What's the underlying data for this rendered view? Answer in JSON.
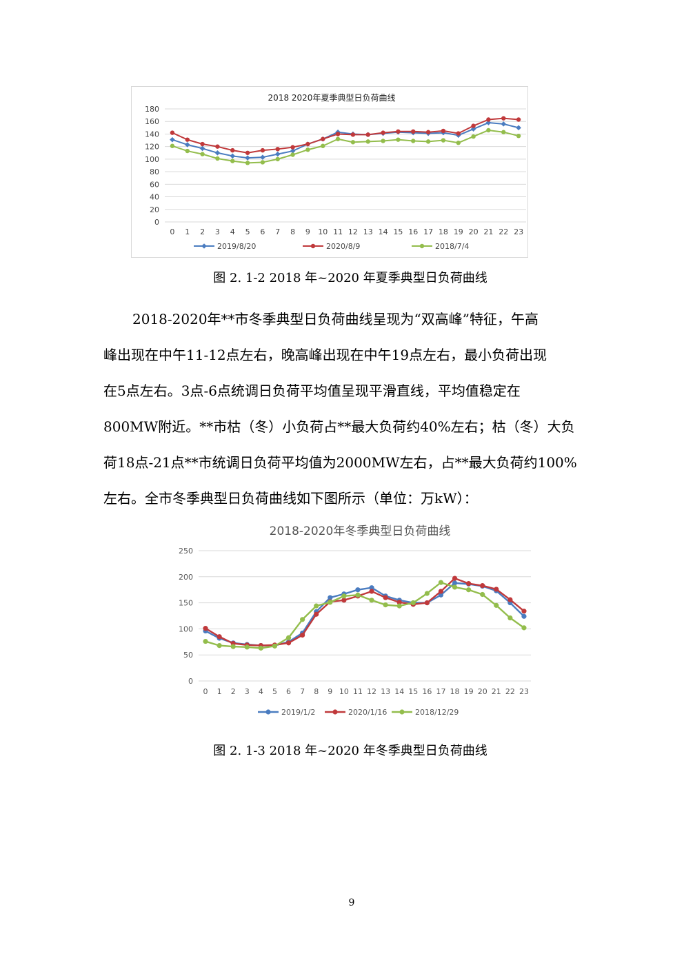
{
  "charts": [
    {
      "title": "2018  2020年夏季典型日负荷曲线",
      "caption": "图 2. 1-2   2018 年~2020 年夏季典型日负荷曲线",
      "type": "line",
      "categories": [
        "0",
        "1",
        "2",
        "3",
        "4",
        "5",
        "6",
        "7",
        "8",
        "9",
        "10",
        "11",
        "12",
        "13",
        "14",
        "15",
        "16",
        "17",
        "18",
        "19",
        "20",
        "21",
        "22",
        "23"
      ],
      "yticks": [
        0,
        20,
        40,
        60,
        80,
        100,
        120,
        140,
        160,
        180
      ],
      "ylim": [
        0,
        180
      ],
      "grid": true,
      "legend_position": "bottom",
      "series": [
        {
          "name": "2019/8/20",
          "color": "#4a7cc0",
          "marker": "diamond",
          "values": [
            131,
            123,
            117,
            110,
            105,
            102,
            103,
            108,
            113,
            124,
            132,
            143,
            140,
            139,
            141,
            143,
            142,
            141,
            142,
            138,
            148,
            158,
            156,
            150
          ]
        },
        {
          "name": "2020/8/9",
          "color": "#c0393b",
          "marker": "circle",
          "values": [
            142,
            131,
            124,
            120,
            114,
            110,
            114,
            116,
            119,
            124,
            132,
            140,
            139,
            139,
            142,
            144,
            144,
            143,
            145,
            141,
            153,
            163,
            165,
            163
          ]
        },
        {
          "name": "2018/7/4",
          "color": "#93bd4c",
          "marker": "circle",
          "values": [
            121,
            113,
            108,
            101,
            97,
            94,
            95,
            100,
            107,
            115,
            121,
            132,
            127,
            128,
            129,
            131,
            129,
            128,
            130,
            126,
            136,
            146,
            143,
            137
          ]
        }
      ]
    },
    {
      "title": "2018-2020年冬季典型日负荷曲线",
      "caption": "图 2. 1-3   2018 年~2020 年冬季典型日负荷曲线",
      "type": "line",
      "categories": [
        "0",
        "1",
        "2",
        "3",
        "4",
        "5",
        "6",
        "7",
        "8",
        "9",
        "10",
        "11",
        "12",
        "13",
        "14",
        "15",
        "16",
        "17",
        "18",
        "19",
        "20",
        "21",
        "22",
        "23"
      ],
      "yticks": [
        0,
        50,
        100,
        150,
        200,
        250
      ],
      "ylim": [
        0,
        250
      ],
      "grid": true,
      "legend_position": "bottom",
      "series": [
        {
          "name": "2019/1/2",
          "color": "#4a7cc0",
          "marker": "circle",
          "values": [
            96,
            82,
            73,
            70,
            68,
            68,
            75,
            92,
            133,
            160,
            167,
            175,
            179,
            163,
            155,
            150,
            150,
            165,
            188,
            186,
            182,
            173,
            150,
            124
          ]
        },
        {
          "name": "2020/1/16",
          "color": "#c0393b",
          "marker": "circle",
          "values": [
            101,
            85,
            72,
            69,
            68,
            69,
            73,
            88,
            128,
            152,
            155,
            163,
            172,
            160,
            151,
            147,
            150,
            172,
            197,
            187,
            183,
            176,
            156,
            134
          ]
        },
        {
          "name": "2018/12/29",
          "color": "#93bd4c",
          "marker": "circle",
          "values": [
            76,
            68,
            66,
            65,
            63,
            67,
            83,
            118,
            144,
            151,
            163,
            165,
            155,
            146,
            144,
            150,
            168,
            189,
            180,
            175,
            166,
            145,
            121,
            102
          ]
        }
      ]
    }
  ],
  "paragraph_lines": [
    "2018-2020年**市冬季典型日负荷曲线呈现为“双高峰”特征，午高",
    "峰出现在中午11-12点左右，晚高峰出现在中午19点左右，最小负荷出现",
    "在5点左右。3点-6点统调日负荷平均值呈现平滑直线，平均值稳定在",
    "800MW附近。**市枯（冬）小负荷占**最大负荷约40%左右；枯（冬）大负",
    "荷18点-21点**市统调日负荷平均值为2000MW左右，占**最大负荷约100%",
    "左右。全市冬季典型日负荷曲线如下图所示（单位：万kW）："
  ],
  "page_number": "9"
}
